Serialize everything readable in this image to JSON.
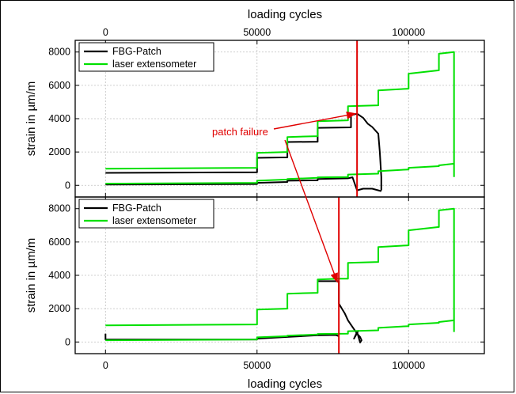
{
  "chart_data": {
    "type": "line",
    "top_xlabel": "loading cycles",
    "xlabel": "loading cycles",
    "xlim": [
      -10000,
      125000
    ],
    "x_ticks": [
      0,
      50000,
      100000
    ],
    "x_tick_labels": [
      "0",
      "50000",
      "100000"
    ],
    "annotation": {
      "text": "patch failure",
      "arrow_targets": [
        {
          "panel": 0,
          "x": 83000,
          "y": 4300
        },
        {
          "panel": 1,
          "x": 77000,
          "y": 3600
        }
      ]
    },
    "colors": {
      "fbg": "#000000",
      "laser": "#00e000",
      "marker": "#e00000"
    },
    "panels": [
      {
        "ylabel": "strain in µm/m",
        "ylim": [
          -700,
          8700
        ],
        "y_ticks": [
          0,
          2000,
          4000,
          6000,
          8000
        ],
        "y_tick_labels": [
          "0",
          "2000",
          "4000",
          "6000",
          "8000"
        ],
        "failure_x": 83000,
        "legend": [
          "FBG-Patch",
          "laser extensometer"
        ],
        "series": [
          {
            "name": "FBG-Patch",
            "role": "fbg",
            "lines": [
              [
                [
                  0,
                  750
                ],
                [
                  50000,
                  780
                ],
                [
                  50000,
                  1650
                ],
                [
                  60000,
                  1680
                ],
                [
                  60000,
                  2600
                ],
                [
                  70000,
                  2620
                ],
                [
                  70000,
                  3450
                ],
                [
                  81000,
                  3480
                ],
                [
                  81000,
                  4200
                ],
                [
                  83000,
                  4300
                ],
                [
                  85000,
                  4050
                ],
                [
                  86500,
                  3700
                ],
                [
                  88000,
                  3500
                ],
                [
                  89000,
                  3300
                ],
                [
                  90000,
                  3100
                ],
                [
                  90500,
                  2000
                ],
                [
                  91000,
                  500
                ],
                [
                  91000,
                  -300
                ]
              ],
              [
                [
                  0,
                  50
                ],
                [
                  50000,
                  80
                ],
                [
                  50000,
                  150
                ],
                [
                  60000,
                  200
                ],
                [
                  60000,
                  280
                ],
                [
                  70000,
                  300
                ],
                [
                  70000,
                  380
                ],
                [
                  80000,
                  420
                ],
                [
                  81500,
                  480
                ],
                [
                  83000,
                  -300
                ],
                [
                  85000,
                  -200
                ],
                [
                  88000,
                  -200
                ],
                [
                  91000,
                  -350
                ]
              ]
            ]
          },
          {
            "name": "laser extensometer",
            "role": "laser",
            "lines": [
              [
                [
                  0,
                  1000
                ],
                [
                  50000,
                  1050
                ],
                [
                  50000,
                  1950
                ],
                [
                  60000,
                  2000
                ],
                [
                  60000,
                  2900
                ],
                [
                  70000,
                  2950
                ],
                [
                  70000,
                  3850
                ],
                [
                  80000,
                  3900
                ],
                [
                  80000,
                  4750
                ],
                [
                  90000,
                  4800
                ],
                [
                  90000,
                  5700
                ],
                [
                  100000,
                  5800
                ],
                [
                  100000,
                  6700
                ],
                [
                  110000,
                  6900
                ],
                [
                  110000,
                  7900
                ],
                [
                  115000,
                  8000
                ],
                [
                  115000,
                  500
                ]
              ],
              [
                [
                  0,
                  100
                ],
                [
                  50000,
                  150
                ],
                [
                  50000,
                  280
                ],
                [
                  60000,
                  350
                ],
                [
                  60000,
                  380
                ],
                [
                  70000,
                  450
                ],
                [
                  70000,
                  480
                ],
                [
                  80000,
                  500
                ],
                [
                  80000,
                  650
                ],
                [
                  90000,
                  700
                ],
                [
                  90000,
                  850
                ],
                [
                  100000,
                  950
                ],
                [
                  100000,
                  1050
                ],
                [
                  110000,
                  1150
                ],
                [
                  110000,
                  1200
                ],
                [
                  115000,
                  1300
                ]
              ]
            ]
          }
        ]
      },
      {
        "ylabel": "strain in µm/m",
        "ylim": [
          -700,
          8700
        ],
        "y_ticks": [
          0,
          2000,
          4000,
          6000,
          8000
        ],
        "y_tick_labels": [
          "0",
          "2000",
          "4000",
          "6000",
          "8000"
        ],
        "failure_x": 77000,
        "legend": [
          "FBG-Patch",
          "laser extensometer"
        ],
        "series": [
          {
            "name": "FBG-Patch",
            "role": "fbg",
            "lines": [
              [
                [
                  0,
                  500
                ],
                [
                  0,
                  150
                ],
                [
                  50000,
                  150
                ],
                [
                  50000,
                  200
                ],
                [
                  60000,
                  300
                ],
                [
                  70000,
                  400
                ],
                [
                  76000,
                  420
                ],
                [
                  77000,
                  350
                ]
              ],
              [
                [
                  70000,
                  3650
                ],
                [
                  77000,
                  3650
                ],
                [
                  77000,
                  2300
                ],
                [
                  78000,
                  2000
                ],
                [
                  79000,
                  1700
                ],
                [
                  80000,
                  1300
                ],
                [
                  81500,
                  900
                ],
                [
                  83000,
                  500
                ],
                [
                  84000,
                  300
                ],
                [
                  84500,
                  100
                ],
                [
                  84000,
                  -30
                ],
                [
                  83000,
                  600
                ],
                [
                  82000,
                  200
                ],
                [
                  83500,
                  700
                ]
              ]
            ]
          },
          {
            "name": "laser extensometer",
            "role": "laser",
            "lines": [
              [
                [
                  0,
                  1000
                ],
                [
                  50000,
                  1050
                ],
                [
                  50000,
                  1950
                ],
                [
                  60000,
                  2000
                ],
                [
                  60000,
                  2900
                ],
                [
                  70000,
                  2950
                ],
                [
                  70000,
                  3750
                ],
                [
                  77000,
                  3800
                ],
                [
                  80000,
                  3800
                ],
                [
                  80000,
                  4750
                ],
                [
                  90000,
                  4800
                ],
                [
                  90000,
                  5700
                ],
                [
                  100000,
                  5800
                ],
                [
                  100000,
                  6700
                ],
                [
                  110000,
                  6900
                ],
                [
                  110000,
                  7900
                ],
                [
                  115000,
                  8000
                ],
                [
                  115000,
                  600
                ]
              ],
              [
                [
                  0,
                  100
                ],
                [
                  50000,
                  150
                ],
                [
                  50000,
                  280
                ],
                [
                  60000,
                  350
                ],
                [
                  60000,
                  380
                ],
                [
                  70000,
                  450
                ],
                [
                  70000,
                  480
                ],
                [
                  80000,
                  500
                ],
                [
                  80000,
                  650
                ],
                [
                  90000,
                  700
                ],
                [
                  90000,
                  850
                ],
                [
                  100000,
                  950
                ],
                [
                  100000,
                  1050
                ],
                [
                  110000,
                  1150
                ],
                [
                  110000,
                  1200
                ],
                [
                  115000,
                  1300
                ]
              ]
            ]
          }
        ]
      }
    ]
  }
}
